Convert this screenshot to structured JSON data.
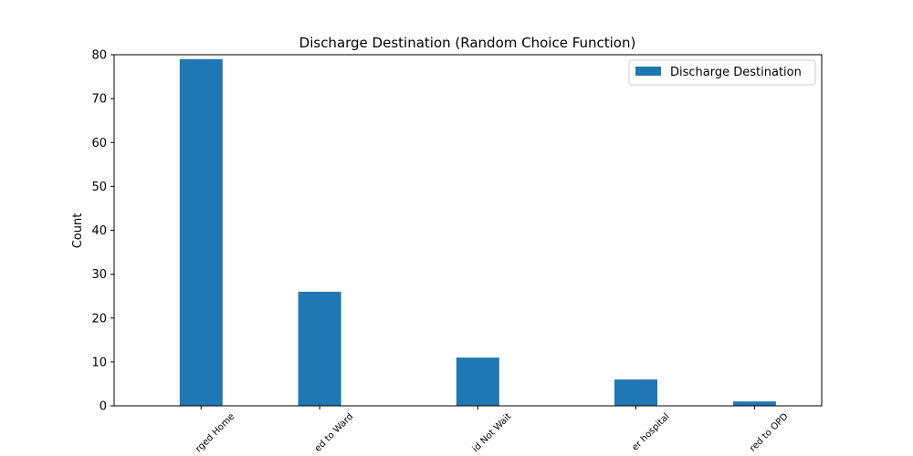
{
  "chart_data": {
    "type": "bar",
    "title": "Discharge Destination (Random Choice Function)",
    "xlabel": "",
    "ylabel": "Count",
    "ylim": [
      0,
      80
    ],
    "yticks": [
      0,
      10,
      20,
      30,
      40,
      50,
      60,
      70,
      80
    ],
    "grid": false,
    "legend_position": "top-right",
    "bar_color": "#1f77b4",
    "categories": [
      "rged Home",
      "ed to Ward",
      "id Not Wait",
      "er hospital",
      "red to OPD"
    ],
    "category_x": [
      1,
      4,
      8,
      12,
      15
    ],
    "xlim": [
      -1.2,
      16.7
    ],
    "series": [
      {
        "name": "Discharge Destination",
        "values": [
          79,
          26,
          11,
          6,
          1
        ]
      }
    ]
  }
}
